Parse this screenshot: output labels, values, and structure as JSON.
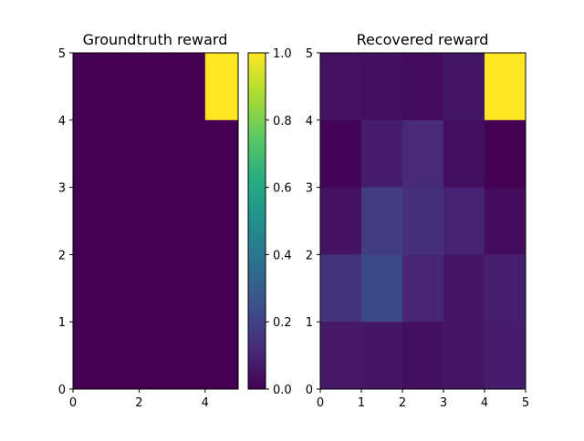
{
  "chart_data": [
    {
      "type": "heatmap",
      "title": "Groundtruth reward",
      "xlim": [
        0,
        5
      ],
      "ylim": [
        0,
        5
      ],
      "xticks": [
        "0",
        "2",
        "4"
      ],
      "yticks": [
        "0",
        "1",
        "2",
        "3",
        "4",
        "5"
      ],
      "colormap": "viridis",
      "values": [
        [
          0,
          0,
          0,
          0,
          1
        ],
        [
          0,
          0,
          0,
          0,
          0
        ],
        [
          0,
          0,
          0,
          0,
          0
        ],
        [
          0,
          0,
          0,
          0,
          0
        ],
        [
          0,
          0,
          0,
          0,
          0
        ]
      ]
    },
    {
      "type": "colorbar",
      "range": [
        0.0,
        1.0
      ],
      "ticks": [
        "0.0",
        "0.2",
        "0.4",
        "0.6",
        "0.8",
        "1.0"
      ],
      "colormap": "viridis"
    },
    {
      "type": "heatmap",
      "title": "Recovered reward",
      "xlim": [
        0,
        5
      ],
      "ylim": [
        0,
        5
      ],
      "xticks": [
        "0",
        "1",
        "2",
        "3",
        "4",
        "5"
      ],
      "yticks": [
        "0",
        "1",
        "2",
        "3",
        "4",
        "5"
      ],
      "colormap": "viridis",
      "values": [
        [
          0.05,
          0.04,
          0.03,
          0.06,
          1.0
        ],
        [
          0.01,
          0.08,
          0.12,
          0.04,
          0.0
        ],
        [
          0.05,
          0.18,
          0.14,
          0.1,
          0.03
        ],
        [
          0.15,
          0.22,
          0.11,
          0.06,
          0.09
        ],
        [
          0.07,
          0.06,
          0.04,
          0.06,
          0.08
        ]
      ]
    }
  ]
}
